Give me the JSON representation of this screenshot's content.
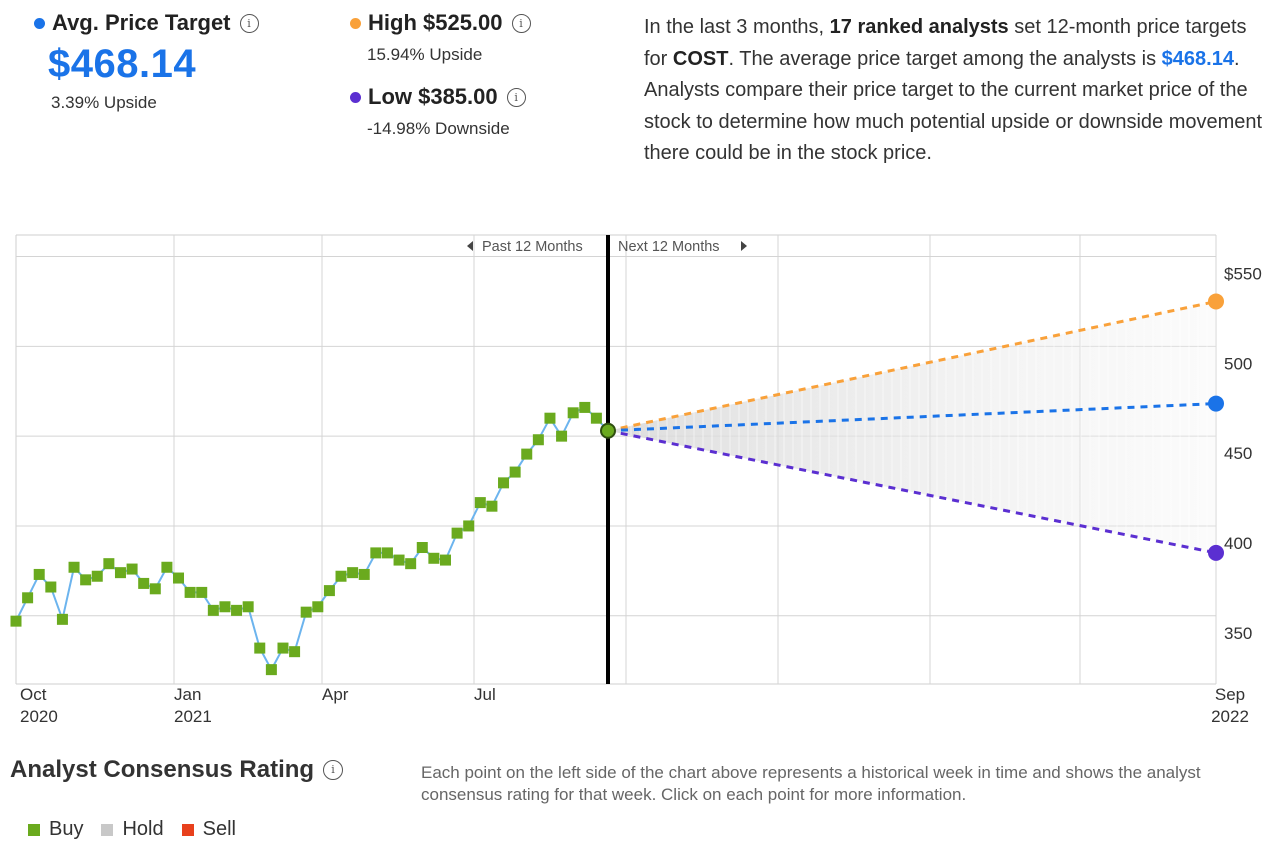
{
  "stats": {
    "avg": {
      "label": "Avg. Price Target",
      "value": "$468.14",
      "sub": "3.39% Upside",
      "color": "#1a73e8"
    },
    "high": {
      "label": "High $525.00",
      "sub": "15.94% Upside",
      "color": "#f9a13a"
    },
    "low": {
      "label": "Low $385.00",
      "sub": "-14.98% Downside",
      "color": "#5b2fd1"
    }
  },
  "description": {
    "p1": "In the last 3 months, ",
    "bold1": "17 ranked analysts",
    "p2": " set 12-month price targets for ",
    "bold2": "COST",
    "p3": ". The average price target among the analysts is ",
    "accent": "$468.14",
    "p4": ". Analysts compare their price target to the current market price of the stock to determine how much potential upside or downside movement there could be in the stock price."
  },
  "chart_data": {
    "type": "line",
    "y_ticks": [
      "$550",
      "500",
      "450",
      "400",
      "350"
    ],
    "ylim": [
      312,
      562
    ],
    "x_ticks": [
      {
        "label": "Oct",
        "sub": "2020"
      },
      {
        "label": "Jan",
        "sub": "2021"
      },
      {
        "label": "Apr",
        "sub": ""
      },
      {
        "label": "Jul",
        "sub": ""
      },
      {
        "label": "Sep",
        "sub": "2022"
      }
    ],
    "past_label": "Past 12 Months",
    "next_label": "Next 12 Months",
    "series": [
      {
        "name": "Buy",
        "values": [
          347,
          360,
          373,
          366,
          348,
          377,
          370,
          372,
          379,
          374,
          376,
          368,
          365,
          377,
          371,
          363,
          363,
          353,
          355,
          353,
          355,
          332,
          320,
          332,
          330,
          352,
          355,
          364,
          372,
          374,
          373,
          385,
          385,
          381,
          379,
          388,
          382,
          381,
          396,
          400,
          413,
          411,
          424,
          430,
          440,
          448,
          460,
          450,
          463,
          466,
          460,
          453
        ]
      }
    ],
    "current_price": 453,
    "targets": {
      "high": 525,
      "average": 468.14,
      "low": 385
    },
    "colors": {
      "buy": "#6aaa1e",
      "line": "#6cb4ee",
      "high": "#f9a13a",
      "avg": "#1a73e8",
      "low": "#5b2fd1"
    }
  },
  "rating": {
    "title": "Analyst Consensus Rating",
    "description": "Each point on the left side of the chart above represents a historical week in time and shows the analyst consensus rating for that week. Click on each point for more information.",
    "legend": [
      {
        "label": "Buy",
        "color": "#6aaa1e"
      },
      {
        "label": "Hold",
        "color": "#c8c8c8"
      },
      {
        "label": "Sell",
        "color": "#e8401c"
      }
    ]
  }
}
